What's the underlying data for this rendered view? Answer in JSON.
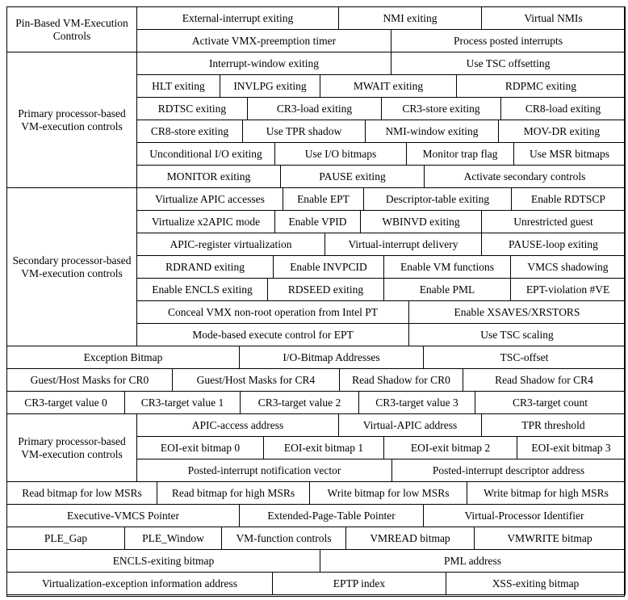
{
  "sections": {
    "pin_based": {
      "label": "Pin-Based VM-Execution Controls"
    },
    "primary_controls": {
      "label": "Primary processor-based VM-execution controls"
    },
    "secondary_controls": {
      "label": "Secondary processor-based VM-execution controls"
    },
    "primary_fields": {
      "label": "Primary processor-based VM-execution controls"
    }
  },
  "pin_based": {
    "row1": [
      "External-interrupt exiting",
      "NMI exiting",
      "Virtual NMIs"
    ],
    "row2": [
      "Activate VMX-preemption timer",
      "Process posted interrupts"
    ]
  },
  "primary_controls": {
    "row1": [
      "Interrupt-window exiting",
      "Use TSC offsetting"
    ],
    "row2": [
      "HLT exiting",
      "INVLPG exiting",
      "MWAIT exiting",
      "RDPMC exiting"
    ],
    "row3": [
      "RDTSC exiting",
      "CR3-load exiting",
      "CR3-store exiting",
      "CR8-load exiting"
    ],
    "row4": [
      "CR8-store exiting",
      "Use TPR shadow",
      "NMI-window exiting",
      "MOV-DR exiting"
    ],
    "row5": [
      "Unconditional I/O exiting",
      "Use I/O bitmaps",
      "Monitor trap flag",
      "Use MSR bitmaps"
    ],
    "row6": [
      "MONITOR exiting",
      "PAUSE exiting",
      "Activate secondary controls"
    ]
  },
  "secondary_controls": {
    "row1": [
      "Virtualize APIC accesses",
      "Enable EPT",
      "Descriptor-table exiting",
      "Enable RDTSCP"
    ],
    "row2": [
      "Virtualize x2APIC mode",
      "Enable VPID",
      "WBINVD exiting",
      "Unrestricted guest"
    ],
    "row3": [
      "APIC-register virtualization",
      "Virtual-interrupt delivery",
      "PAUSE-loop exiting"
    ],
    "row4": [
      "RDRAND exiting",
      "Enable INVPCID",
      "Enable VM functions",
      "VMCS shadowing"
    ],
    "row5": [
      "Enable ENCLS exiting",
      "RDSEED exiting",
      "Enable PML",
      "EPT-violation #VE"
    ],
    "row6": [
      "Conceal VMX non-root operation from Intel PT",
      "Enable XSAVES/XRSTORS"
    ],
    "row7": [
      "Mode-based execute control for EPT",
      "Use TSC scaling"
    ]
  },
  "fields": {
    "row1": [
      "Exception Bitmap",
      "I/O-Bitmap Addresses",
      "TSC-offset"
    ],
    "row2": [
      "Guest/Host Masks for CR0",
      "Guest/Host Masks for CR4",
      "Read Shadow for CR0",
      "Read Shadow for CR4"
    ],
    "row3": [
      "CR3-target value 0",
      "CR3-target value 1",
      "CR3-target value 2",
      "CR3-target value 3",
      "CR3-target count"
    ],
    "pf_row1": [
      "APIC-access address",
      "Virtual-APIC address",
      "TPR threshold"
    ],
    "pf_row2": [
      "EOI-exit bitmap 0",
      "EOI-exit bitmap 1",
      "EOI-exit bitmap 2",
      "EOI-exit bitmap 3"
    ],
    "pf_row3": [
      "Posted-interrupt notification vector",
      "Posted-interrupt descriptor address"
    ],
    "row4": [
      "Read bitmap for low MSRs",
      "Read bitmap for high MSRs",
      "Write bitmap for low MSRs",
      "Write bitmap for high MSRs"
    ],
    "row5": [
      "Executive-VMCS Pointer",
      "Extended-Page-Table Pointer",
      "Virtual-Processor Identifier"
    ],
    "row6": [
      "PLE_Gap",
      "PLE_Window",
      "VM-function controls",
      "VMREAD bitmap",
      "VMWRITE bitmap"
    ],
    "row7": [
      "ENCLS-exiting bitmap",
      "PML address"
    ],
    "row8": [
      "Virtualization-exception information address",
      "EPTP index",
      "XSS-exiting bitmap"
    ]
  }
}
